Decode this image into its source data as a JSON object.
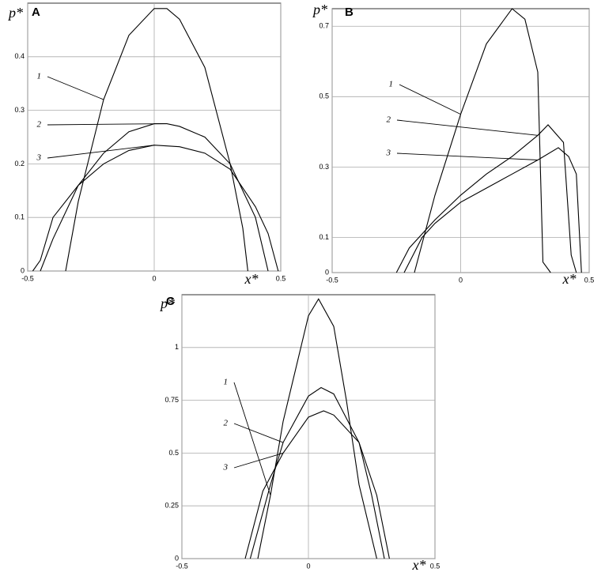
{
  "chart_data": [
    {
      "type": "line",
      "panel": "A",
      "y_label": "p*",
      "x_label": "x*",
      "grid": true,
      "line_color": "#000000",
      "xlim": [
        -0.5,
        0.5
      ],
      "xticks": [
        -0.5,
        0,
        0.5
      ],
      "ylim": [
        0,
        0.5
      ],
      "yticks": [
        0,
        0.1,
        0.2,
        0.3,
        0.4
      ],
      "series": [
        {
          "name": "1",
          "x": [
            -0.35,
            -0.3,
            -0.2,
            -0.1,
            0,
            0.05,
            0.1,
            0.2,
            0.3,
            0.35,
            0.37
          ],
          "values": [
            0,
            0.13,
            0.32,
            0.44,
            0.49,
            0.49,
            0.47,
            0.38,
            0.2,
            0.08,
            0
          ]
        },
        {
          "name": "2",
          "x": [
            -0.45,
            -0.4,
            -0.3,
            -0.2,
            -0.1,
            0,
            0.05,
            0.1,
            0.2,
            0.3,
            0.4,
            0.45
          ],
          "values": [
            0,
            0.06,
            0.16,
            0.22,
            0.26,
            0.275,
            0.275,
            0.27,
            0.25,
            0.2,
            0.1,
            0
          ]
        },
        {
          "name": "3",
          "x": [
            -0.48,
            -0.45,
            -0.4,
            -0.3,
            -0.2,
            -0.1,
            0,
            0.1,
            0.2,
            0.3,
            0.4,
            0.45,
            0.49
          ],
          "values": [
            0,
            0.02,
            0.1,
            0.16,
            0.2,
            0.225,
            0.235,
            0.232,
            0.22,
            0.19,
            0.12,
            0.07,
            0
          ]
        }
      ]
    },
    {
      "type": "line",
      "panel": "B",
      "y_label": "p*",
      "x_label": "x*",
      "grid": true,
      "line_color": "#000000",
      "xlim": [
        -0.5,
        0.5
      ],
      "xticks": [
        -0.5,
        0,
        0.5
      ],
      "ylim": [
        0,
        0.75
      ],
      "yticks": [
        0,
        0.1,
        0.3,
        0.5,
        0.7
      ],
      "series": [
        {
          "name": "1",
          "x": [
            -0.18,
            -0.1,
            0,
            0.1,
            0.2,
            0.25,
            0.3,
            0.32,
            0.35
          ],
          "values": [
            0,
            0.22,
            0.45,
            0.65,
            0.75,
            0.72,
            0.57,
            0.03,
            0
          ]
        },
        {
          "name": "2",
          "x": [
            -0.25,
            -0.2,
            -0.1,
            0,
            0.1,
            0.2,
            0.3,
            0.34,
            0.4,
            0.43,
            0.45
          ],
          "values": [
            0,
            0.07,
            0.15,
            0.22,
            0.28,
            0.33,
            0.39,
            0.42,
            0.37,
            0.05,
            0
          ]
        },
        {
          "name": "3",
          "x": [
            -0.22,
            -0.15,
            -0.1,
            0,
            0.1,
            0.2,
            0.3,
            0.38,
            0.42,
            0.45,
            0.47
          ],
          "values": [
            0,
            0.1,
            0.14,
            0.2,
            0.24,
            0.28,
            0.32,
            0.355,
            0.33,
            0.28,
            0
          ]
        }
      ]
    },
    {
      "type": "line",
      "panel": "C",
      "y_label": "p*",
      "x_label": "x*",
      "grid": true,
      "line_color": "#000000",
      "xlim": [
        -0.5,
        0.5
      ],
      "xticks": [
        -0.5,
        0,
        0.5
      ],
      "ylim": [
        0,
        1.25
      ],
      "yticks": [
        0,
        0.25,
        0.5,
        0.75,
        1
      ],
      "series": [
        {
          "name": "1",
          "x": [
            -0.2,
            -0.15,
            -0.1,
            0,
            0.04,
            0.1,
            0.15,
            0.2,
            0.27
          ],
          "values": [
            0,
            0.3,
            0.65,
            1.15,
            1.23,
            1.1,
            0.75,
            0.35,
            0
          ]
        },
        {
          "name": "2",
          "x": [
            -0.23,
            -0.15,
            -0.1,
            0,
            0.05,
            0.1,
            0.2,
            0.25,
            0.3
          ],
          "values": [
            0,
            0.35,
            0.55,
            0.77,
            0.81,
            0.78,
            0.55,
            0.3,
            0
          ]
        },
        {
          "name": "3",
          "x": [
            -0.25,
            -0.18,
            -0.1,
            0,
            0.06,
            0.1,
            0.2,
            0.27,
            0.32
          ],
          "values": [
            0,
            0.32,
            0.5,
            0.67,
            0.7,
            0.68,
            0.55,
            0.3,
            0
          ]
        }
      ]
    }
  ]
}
